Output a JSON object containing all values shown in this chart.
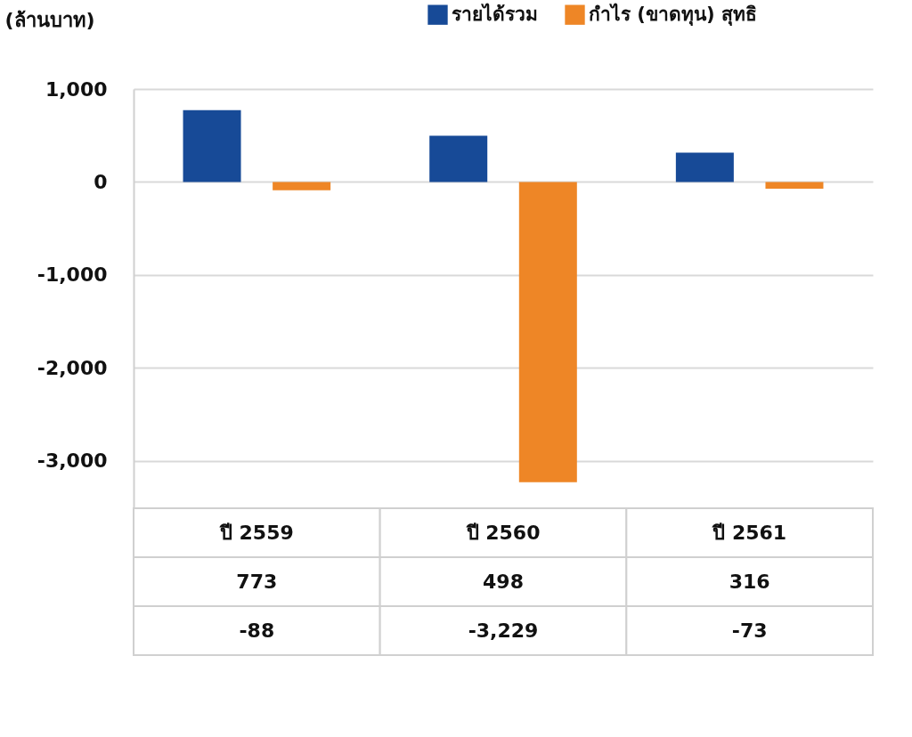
{
  "chart_data": {
    "type": "bar",
    "ylabel": "(ล้านบาท)",
    "categories": [
      "ปี 2559",
      "ปี 2560",
      "ปี 2561"
    ],
    "series": [
      {
        "name": "รายได้รวม",
        "color": "#174a97",
        "values": [
          773,
          498,
          316
        ],
        "value_labels": [
          "773",
          "498",
          "316"
        ]
      },
      {
        "name": "กำไร (ขาดทุน) สุทธิ",
        "color": "#ee8626",
        "values": [
          -88,
          -3229,
          -73
        ],
        "value_labels": [
          "-88",
          "-3,229",
          "-73"
        ]
      }
    ],
    "ylim": [
      -3500,
      1000
    ],
    "yticks": [
      {
        "value": 1000,
        "label": "1,000"
      },
      0,
      {
        "value": -1000,
        "label": "-1,000"
      },
      {
        "value": -2000,
        "label": "-2,000"
      },
      {
        "value": -3000,
        "label": "-3,000"
      }
    ],
    "grid": "y",
    "legend": "top right"
  }
}
